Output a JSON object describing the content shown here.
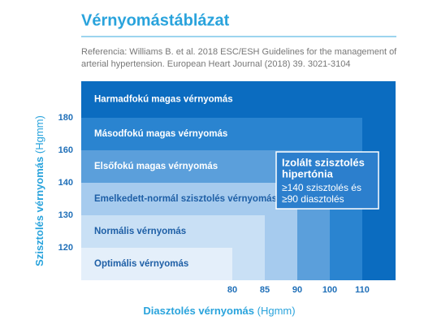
{
  "chart_data": {
    "type": "bp-zones",
    "title": "Vérnyomástáblázat",
    "reference": [
      "Referencia: Williams B. et al. 2018 ESC/ESH Guidelines for the management  of",
      "arterial hypertension. European Heart Journal (2018) 39. 3021-3104"
    ],
    "y_label": "Szisztolés vérnyomás",
    "y_unit": "(Hgmm)",
    "x_label": "Diasztolés vérnyomás",
    "x_unit": "(Hgmm)",
    "xticks": [
      80,
      85,
      90,
      100,
      110
    ],
    "yticks": [
      120,
      130,
      140,
      160,
      180
    ],
    "zones": [
      {
        "name": "Harmadfokú magas vérnyomás",
        "color": "#0b6cc0"
      },
      {
        "name": "Másodfokú magas vérnyomás",
        "color": "#2a84d0",
        "x_max": 110,
        "y_max": 180
      },
      {
        "name": "Elsőfokú magas vérnyomás",
        "color": "#5b9fdb",
        "x_max": 100,
        "y_max": 160
      },
      {
        "name": "Emelkedett-normál szisztolés vérnyomás",
        "color": "#a6cbee",
        "x_max": 90,
        "y_max": 140
      },
      {
        "name": "Normális vérnyomás",
        "color": "#c9e0f5",
        "x_max": 85,
        "y_max": 130
      },
      {
        "name": "Optimális vérnyomás",
        "color": "#e4effa",
        "x_max": 80,
        "y_max": 120
      }
    ],
    "isolated": {
      "title": [
        "Izolált szisztolés",
        "hipertónia"
      ],
      "text": [
        "≥140 szisztolés és",
        "≥90 diasztolés"
      ]
    }
  }
}
